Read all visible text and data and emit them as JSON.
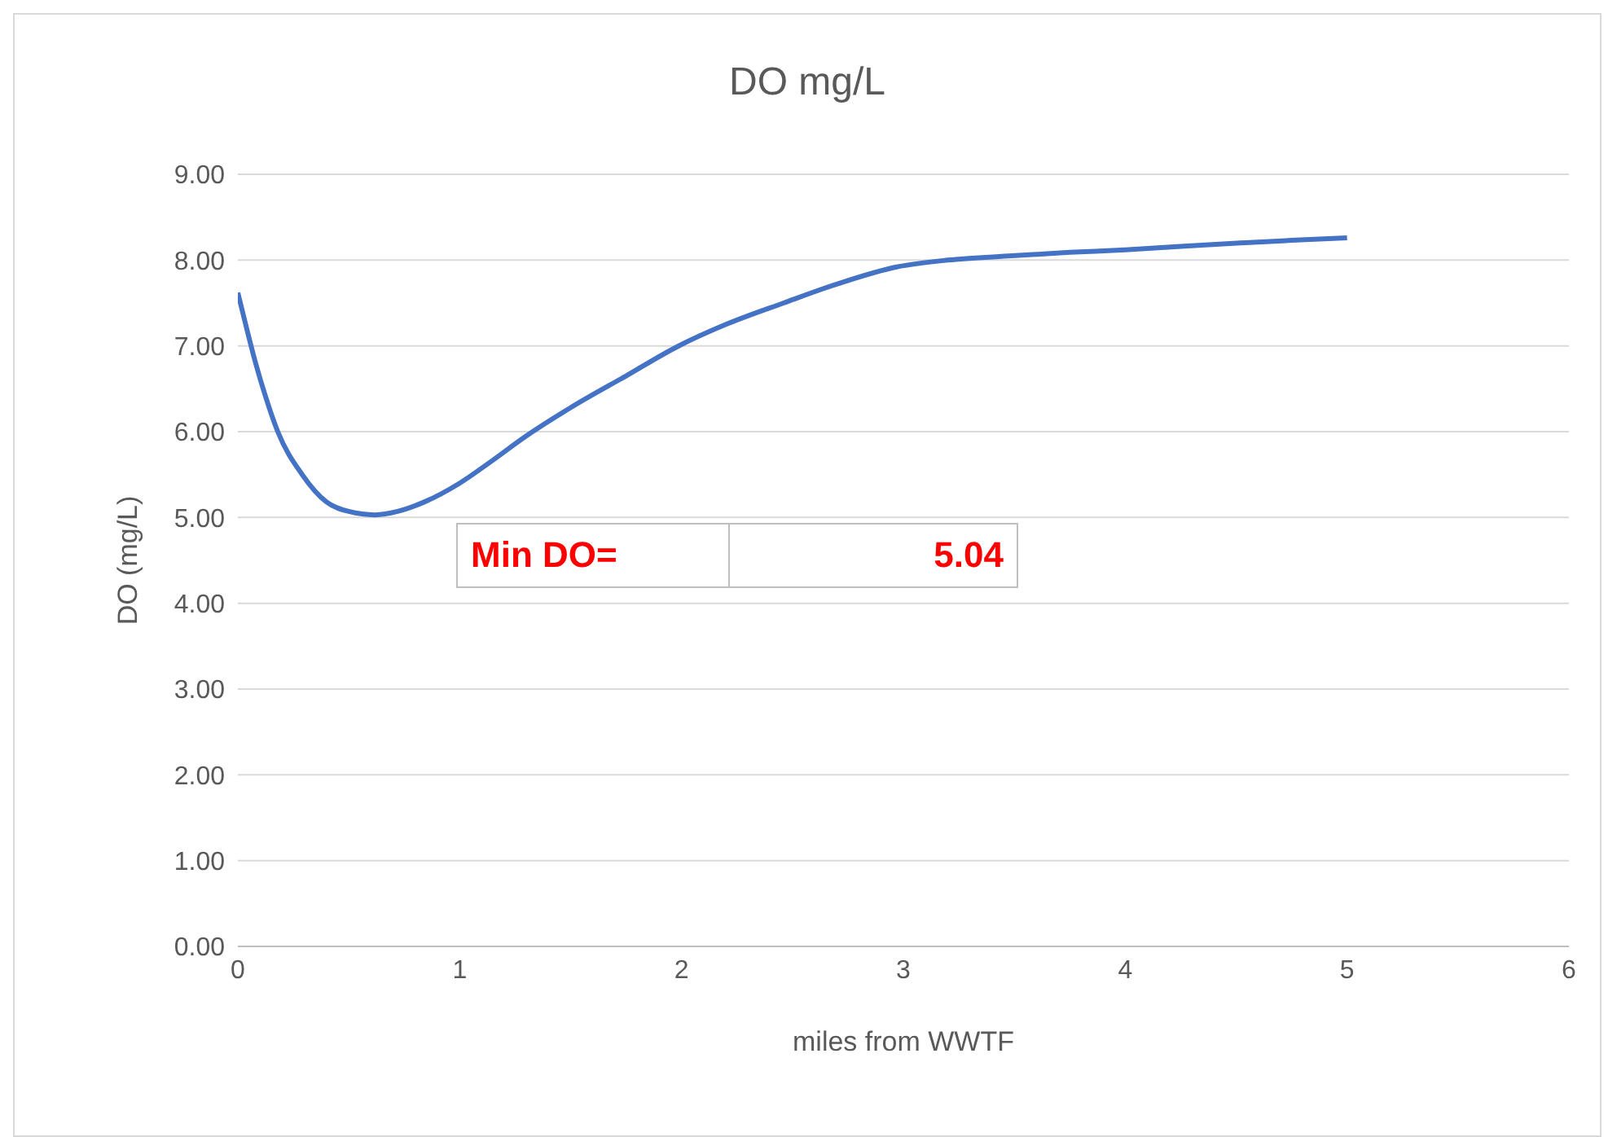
{
  "chart_data": {
    "type": "line",
    "title": "DO mg/L",
    "xlabel": "miles from WWTF",
    "ylabel": "DO (mg/L)",
    "x": [
      0,
      0.04,
      0.08,
      0.12,
      0.18,
      0.29,
      0.4,
      0.5,
      0.62,
      0.72,
      0.84,
      1.0,
      1.14,
      1.3,
      1.5,
      1.75,
      1.98,
      2.2,
      2.46,
      2.7,
      2.97,
      3.2,
      3.49,
      3.75,
      4.0,
      4.25,
      4.52,
      4.75,
      5.0
    ],
    "series": [
      {
        "color": "#4472c4",
        "values": [
          7.62,
          7.2,
          6.8,
          6.45,
          6.0,
          5.5,
          5.18,
          5.07,
          5.03,
          5.07,
          5.18,
          5.4,
          5.65,
          5.95,
          6.28,
          6.65,
          6.99,
          7.25,
          7.5,
          7.72,
          7.92,
          8.0,
          8.05,
          8.09,
          8.12,
          8.16,
          8.2,
          8.23,
          8.26
        ]
      }
    ],
    "xlim": [
      0,
      6
    ],
    "xticks": [
      0,
      1,
      2,
      3,
      4,
      5,
      6
    ],
    "ylim": [
      0,
      9
    ],
    "yticks": [
      {
        "value": 0,
        "label": "0.00"
      },
      {
        "value": 1,
        "label": "1.00"
      },
      {
        "value": 2,
        "label": "2.00"
      },
      {
        "value": 3,
        "label": "3.00"
      },
      {
        "value": 4,
        "label": "4.00"
      },
      {
        "value": 5,
        "label": "5.00"
      },
      {
        "value": 6,
        "label": "6.00"
      },
      {
        "value": 7,
        "label": "7.00"
      },
      {
        "value": 8,
        "label": "8.00"
      },
      {
        "value": 9,
        "label": "9.00"
      }
    ],
    "grid": "y",
    "legend": false,
    "marker": "none",
    "line_style": "solid",
    "annotations": [
      "Min DO=",
      "5.04"
    ]
  }
}
